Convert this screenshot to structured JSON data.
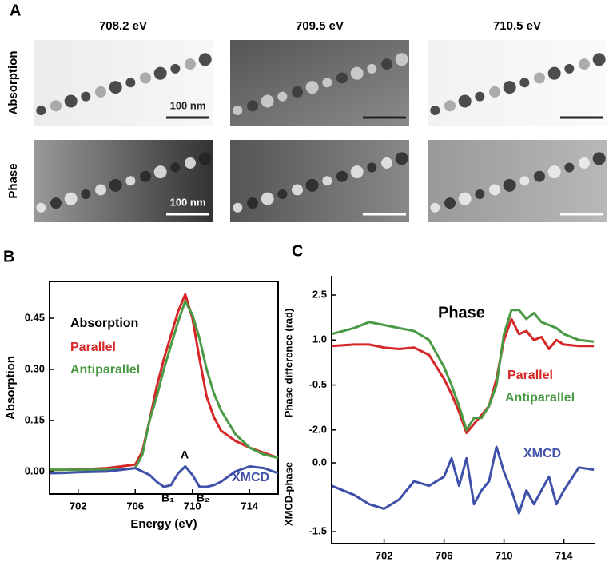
{
  "panel_a": {
    "label": "A",
    "columns": [
      "708.2 eV",
      "709.5 eV",
      "710.5 eV"
    ],
    "rows": [
      "Absorption",
      "Phase"
    ],
    "scalebars": [
      "100 nm",
      "100 nm"
    ]
  },
  "chart_data": [
    {
      "type": "line",
      "panel": "B",
      "xlabel": "Energy (eV)",
      "ylabel": "Absorption",
      "legend_title": "Absorption",
      "x": [
        700,
        701,
        702,
        703,
        704,
        705,
        706,
        706.5,
        707,
        707.5,
        708,
        708.5,
        709,
        709.5,
        710,
        710.5,
        711,
        711.5,
        712,
        713,
        714,
        715,
        716
      ],
      "xlim": [
        700,
        716
      ],
      "xticks": [
        702,
        706,
        710,
        714
      ],
      "ylim": [
        -0.066,
        0.558
      ],
      "yticks": [
        {
          "value": 0,
          "label": "0.00"
        },
        0.15,
        {
          "value": 0.3,
          "label": "0.30"
        },
        0.45
      ],
      "series": [
        {
          "name": "Parallel",
          "color": "#d62728",
          "values": [
            0.005,
            0.005,
            0.006,
            0.008,
            0.01,
            0.015,
            0.02,
            0.06,
            0.15,
            0.25,
            0.33,
            0.4,
            0.47,
            0.52,
            0.45,
            0.33,
            0.22,
            0.16,
            0.12,
            0.09,
            0.07,
            0.055,
            0.04
          ]
        },
        {
          "name": "Antiparallel",
          "color": "#4a9a45",
          "values": [
            0.005,
            0.005,
            0.005,
            0.005,
            0.005,
            0.006,
            0.01,
            0.05,
            0.15,
            0.22,
            0.3,
            0.37,
            0.44,
            0.5,
            0.46,
            0.39,
            0.3,
            0.23,
            0.18,
            0.11,
            0.07,
            0.05,
            0.04
          ]
        },
        {
          "name": "XMCD",
          "color": "#3f51a8",
          "values": [
            -0.005,
            -0.004,
            -0.002,
            -0.001,
            0,
            0.005,
            0.01,
            0,
            -0.01,
            -0.03,
            -0.045,
            -0.04,
            -0.005,
            0.015,
            -0.01,
            -0.045,
            -0.045,
            -0.04,
            -0.03,
            0,
            0.015,
            0.01,
            -0.005
          ]
        }
      ],
      "annotations": [
        "A",
        "B₁",
        "B₂"
      ]
    },
    {
      "type": "line",
      "panel": "C",
      "title": "Phase",
      "xlabel": "Energy (eV)",
      "ylabel": "Phase difference (rad)",
      "y2label": "XMCD-phase",
      "x": [
        698.5,
        700,
        701,
        702,
        703,
        704,
        705,
        706,
        706.5,
        707,
        707.5,
        708,
        708.5,
        709,
        709.5,
        710,
        710.5,
        711,
        711.5,
        712,
        712.5,
        713,
        713.5,
        714,
        715,
        716
      ],
      "xlim": [
        698.5,
        716.1
      ],
      "xticks": [
        702,
        706,
        710,
        714
      ],
      "ylim": [
        -5.79,
        3.14
      ],
      "yticks": [
        {
          "value": 2.5,
          "label": "2.5"
        },
        {
          "value": 1,
          "label": "1.0"
        },
        -0.5,
        {
          "value": -2,
          "label": "-2.0"
        }
      ],
      "y2lim": [
        -1.76,
        4.08
      ],
      "y2ticks": [
        {
          "value": 0,
          "label": "0.0"
        },
        -1.5
      ],
      "series": [
        {
          "name": "Parallel",
          "color": "#d62728",
          "values": [
            0.8,
            0.85,
            0.85,
            0.75,
            0.7,
            0.75,
            0.5,
            -0.3,
            -0.8,
            -1.4,
            -2.1,
            -1.8,
            -1.5,
            -1.2,
            -0.3,
            1.0,
            1.7,
            1.2,
            1.3,
            1.0,
            1.1,
            0.7,
            1.0,
            0.85,
            0.8,
            0.8
          ]
        },
        {
          "name": "Antiparallel",
          "color": "#4a9a45",
          "values": [
            1.2,
            1.4,
            1.6,
            1.5,
            1.4,
            1.3,
            1.0,
            0.1,
            -0.5,
            -1.2,
            -2.0,
            -1.6,
            -1.6,
            -1.2,
            -0.5,
            1.2,
            2.0,
            2.0,
            1.7,
            1.9,
            1.6,
            1.5,
            1.4,
            1.2,
            1.0,
            0.95
          ]
        },
        {
          "name": "XMCD",
          "color": "#3f51a8",
          "axis": "y2",
          "values": [
            -0.5,
            -0.7,
            -0.9,
            -1.0,
            -0.8,
            -0.4,
            -0.5,
            -0.3,
            0.1,
            -0.5,
            0.1,
            -0.9,
            -0.6,
            -0.4,
            0.35,
            -0.2,
            -0.6,
            -1.1,
            -0.6,
            -0.9,
            -0.6,
            -0.3,
            -0.9,
            -0.6,
            -0.1,
            -0.15
          ]
        }
      ]
    }
  ]
}
